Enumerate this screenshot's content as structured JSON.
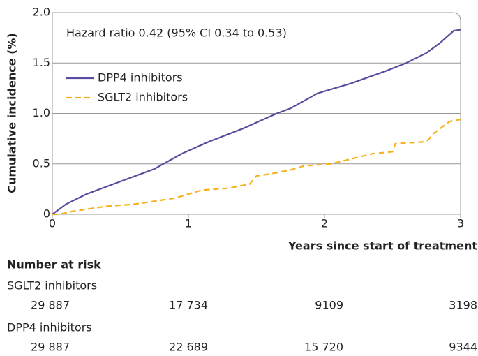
{
  "chart_data": {
    "type": "line",
    "annotation": "Hazard ratio 0.42 (95% CI 0.34 to 0.53)",
    "xlabel": "Years since start of treatment",
    "ylabel": "Cumulative incidence (%)",
    "xlim": [
      0,
      3
    ],
    "ylim": [
      0,
      2
    ],
    "xticks": [
      0,
      1,
      2,
      3
    ],
    "yticks": [
      0,
      0.5,
      {
        "value": 1,
        "label": "1.0"
      },
      1.5,
      {
        "value": 2,
        "label": "2.0"
      }
    ],
    "grid": true,
    "legend": "upper left",
    "series": [
      {
        "name": "DPP4 inhibitors",
        "color": "#5b4a9e",
        "dash": false,
        "x": [
          0,
          0.1,
          0.25,
          0.45,
          0.75,
          0.95,
          1.15,
          1.4,
          1.65,
          1.75,
          1.95,
          2.2,
          2.45,
          2.6,
          2.75,
          2.85,
          2.95,
          3.0
        ],
        "values": [
          0,
          0.1,
          0.2,
          0.3,
          0.45,
          0.6,
          0.72,
          0.85,
          1.0,
          1.05,
          1.2,
          1.3,
          1.42,
          1.5,
          1.6,
          1.7,
          1.82,
          1.83
        ]
      },
      {
        "name": "SGLT2 inhibitors",
        "color": "#f5b21b",
        "dash": true,
        "x": [
          0,
          0.05,
          0.15,
          0.25,
          0.4,
          0.6,
          0.75,
          0.9,
          1.0,
          1.1,
          1.3,
          1.45,
          1.5,
          1.6,
          1.75,
          1.85,
          2.05,
          2.2,
          2.35,
          2.5,
          2.52,
          2.75,
          2.8,
          2.92,
          3.0
        ],
        "values": [
          0,
          0,
          0.03,
          0.05,
          0.08,
          0.1,
          0.13,
          0.16,
          0.2,
          0.24,
          0.26,
          0.3,
          0.38,
          0.4,
          0.44,
          0.48,
          0.5,
          0.55,
          0.6,
          0.62,
          0.7,
          0.72,
          0.8,
          0.92,
          0.94
        ]
      }
    ],
    "risk_table": {
      "title": "Number at risk",
      "groups": [
        {
          "name": "SGLT2 inhibitors",
          "values": [
            "29 887",
            "17 734",
            "9109",
            "3198"
          ]
        },
        {
          "name": "DPP4 inhibitors",
          "values": [
            "29 887",
            "22 689",
            "15 720",
            "9344"
          ]
        }
      ]
    }
  }
}
